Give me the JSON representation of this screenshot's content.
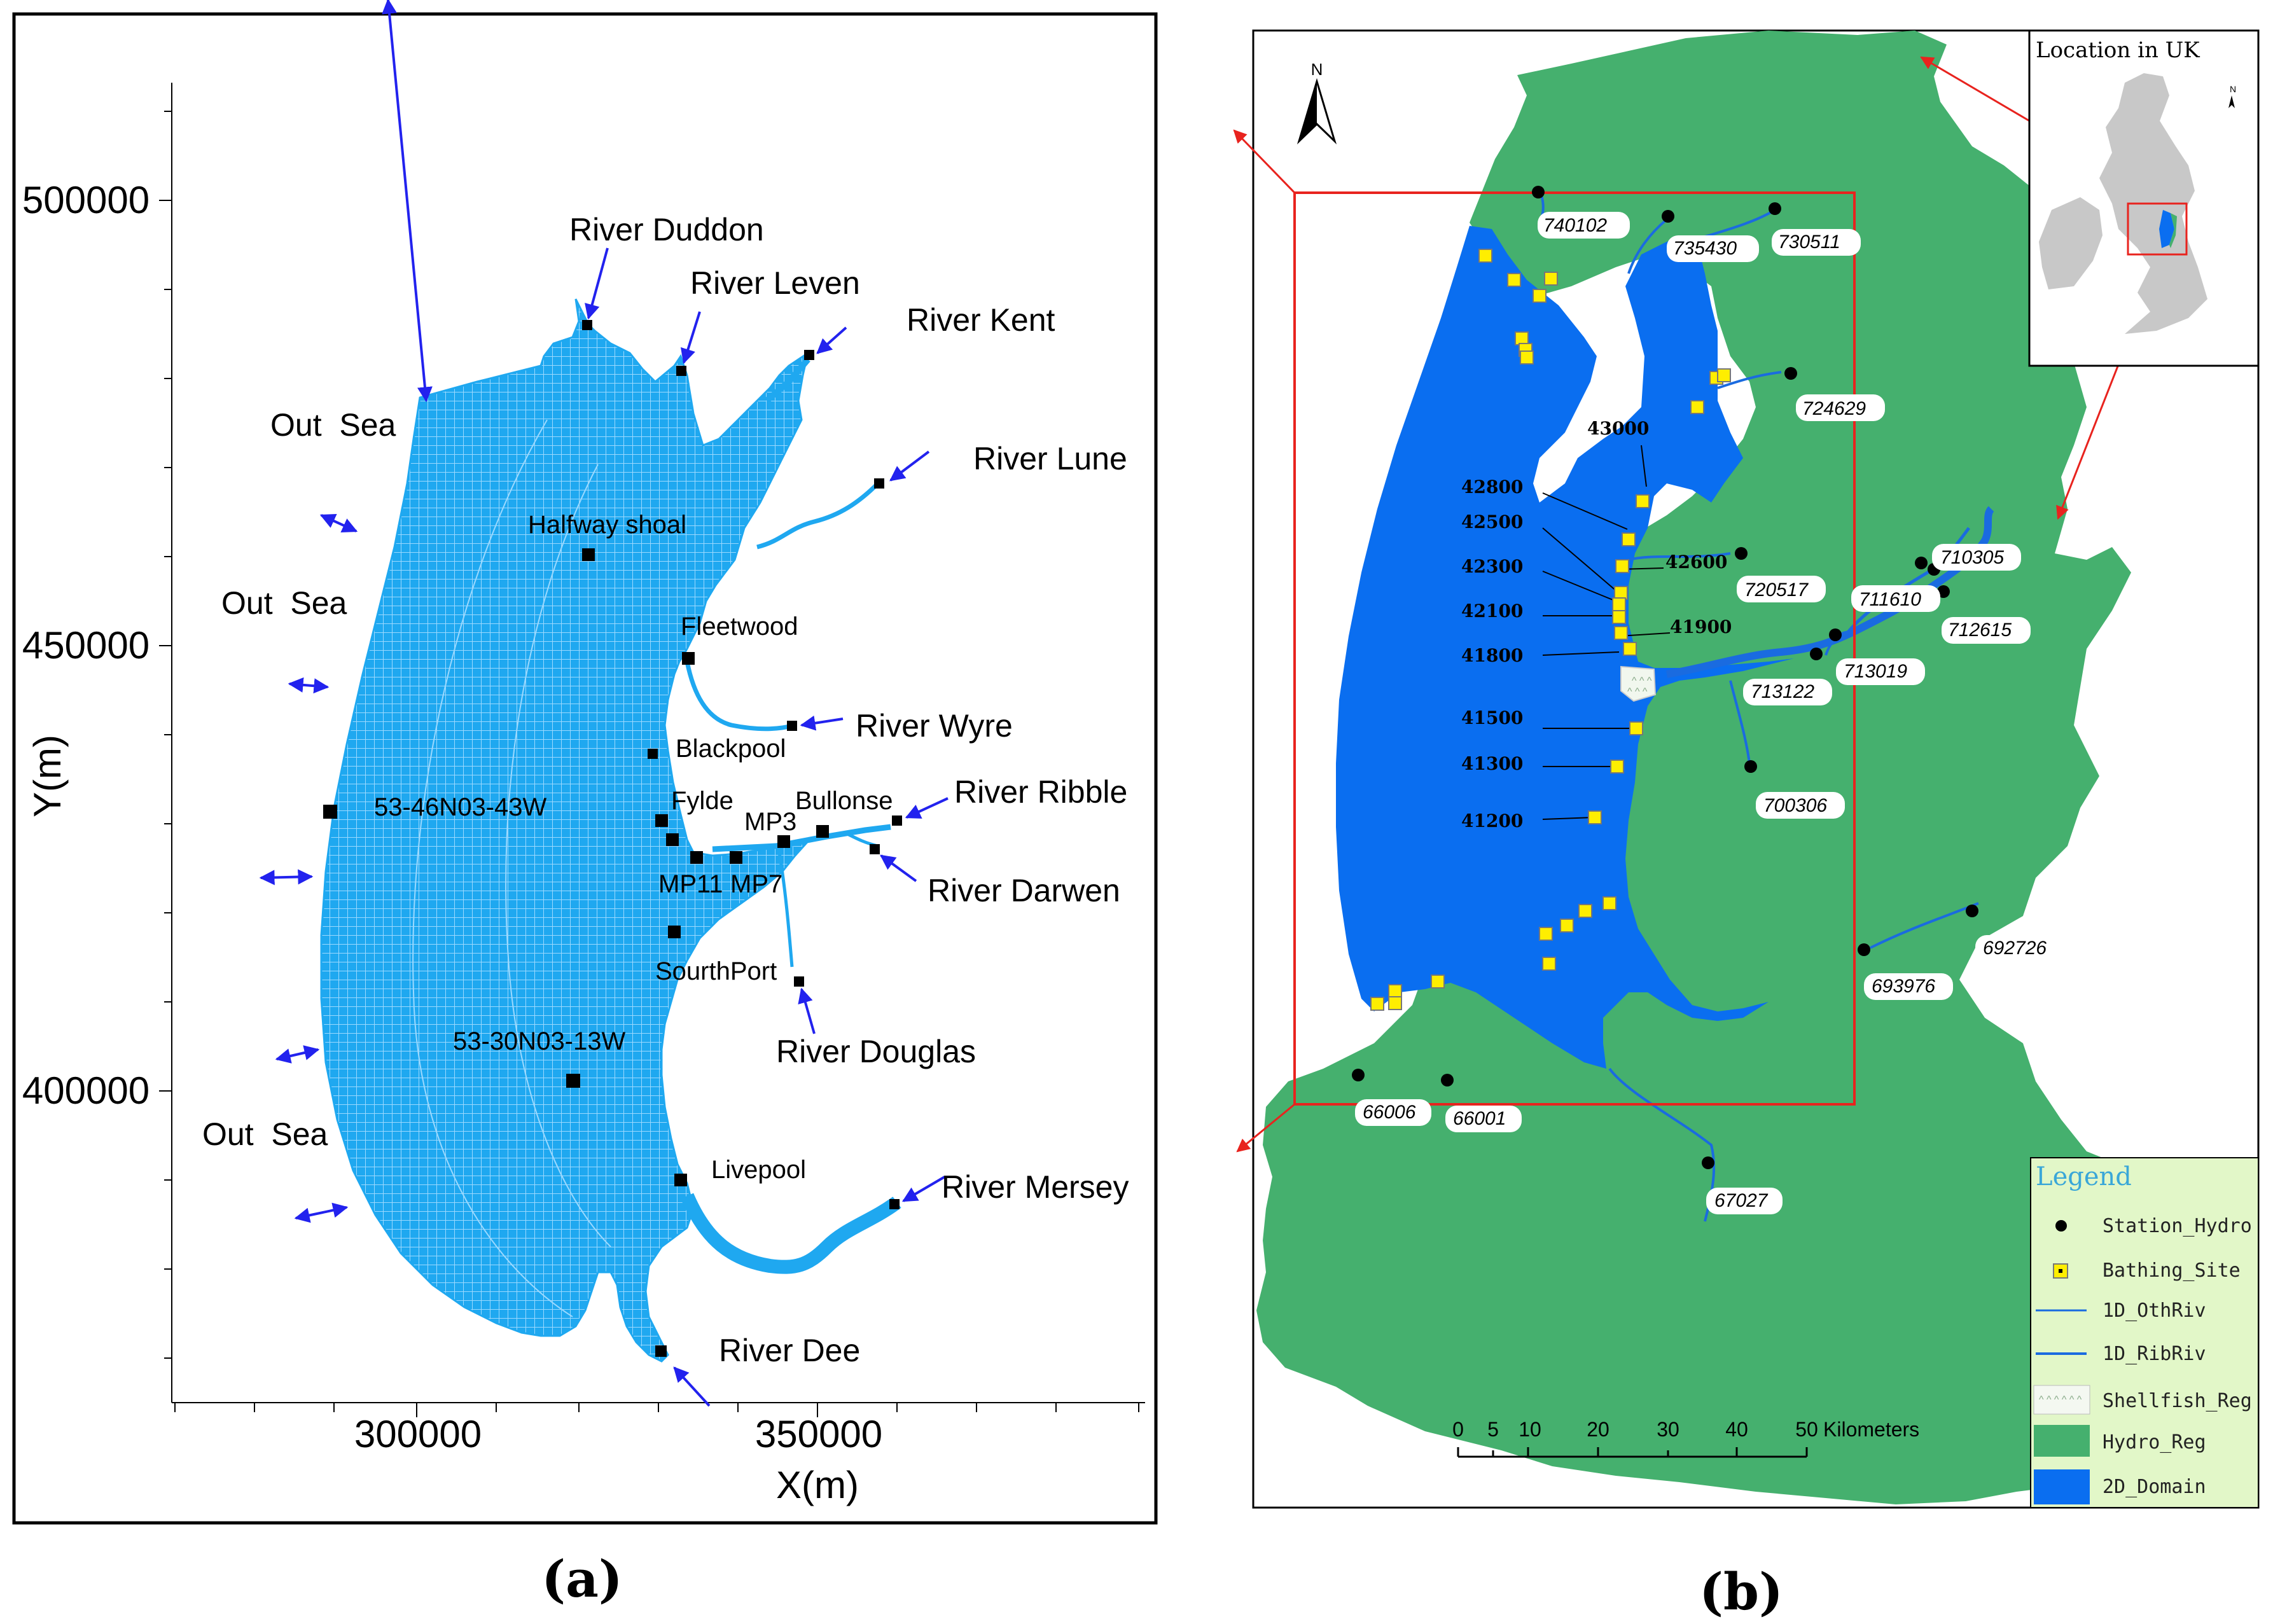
{
  "panel_a": {
    "caption": "(a)",
    "axes": {
      "xlabel": "X(m)",
      "ylabel": "Y(m)",
      "x_ticks": [
        "300000",
        "350000"
      ],
      "y_ticks": [
        "500000",
        "450000",
        "400000"
      ]
    },
    "labels": {
      "river_duddon": "River Duddon",
      "river_leven": "River Leven",
      "river_kent": "River Kent",
      "river_lune": "River Lune",
      "river_wyre": "River Wyre",
      "river_ribble": "River Ribble",
      "river_darwen": "River Darwen",
      "river_douglas": "River Douglas",
      "river_mersey": "River Mersey",
      "river_dee": "River Dee",
      "out_sea": "Out  Sea",
      "halfway_shoal": "Halfway shoal",
      "fleetwood": "Fleetwood",
      "blackpool": "Blackpool",
      "fylde": "Fylde",
      "mp3": "MP3",
      "bullonse": "Bullonse",
      "mp11": "MP11",
      "mp7": "MP7",
      "southport": "SourthPort",
      "livepool": "Livepool",
      "station_north": "53-46N03-43W",
      "station_south": "53-30N03-13W"
    },
    "colors": {
      "mesh": "#1fa8f0",
      "arrow": "#2222ee"
    }
  },
  "panel_b": {
    "caption": "(b)",
    "north": "N",
    "inset_title": "Location in UK",
    "hydro_stations": [
      "740102",
      "735430",
      "730511",
      "724629",
      "720517",
      "710305",
      "711610",
      "712615",
      "713019",
      "713122",
      "700306",
      "692726",
      "693976",
      "66006",
      "66001",
      "67027"
    ],
    "bathing_sites": [
      "43000",
      "42800",
      "42500",
      "42600",
      "42300",
      "42100",
      "41900",
      "41800",
      "41500",
      "41300",
      "41200"
    ],
    "scale_bar": {
      "ticks": [
        "0",
        "5",
        "10",
        "20",
        "30",
        "40",
        "50"
      ],
      "unit": "Kilometers"
    },
    "legend": {
      "title": "Legend",
      "items": [
        "Station_Hydro",
        "Bathing_Site",
        "1D_OthRiv",
        "1D_RibRiv",
        "Shellfish_Reg",
        "Hydro_Reg",
        "2D_Domain"
      ]
    },
    "colors": {
      "hydro_reg": "#45b06e",
      "domain_2d": "#0a6ef0",
      "bathing": "#ffee00",
      "box": "#e8231e",
      "legend_bg": "#e2f7c8",
      "legend_title": "#3aa7d8"
    }
  }
}
